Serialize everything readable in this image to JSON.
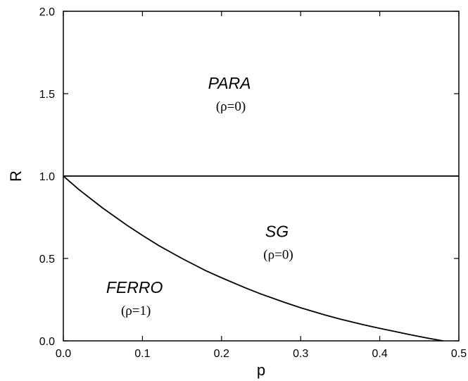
{
  "chart_data": {
    "type": "line",
    "xlabel": "p",
    "ylabel": "R",
    "xlim": [
      0.0,
      0.5
    ],
    "ylim": [
      0.0,
      2.0
    ],
    "x_ticks": [
      "0.0",
      "0.1",
      "0.2",
      "0.3",
      "0.4",
      "0.5"
    ],
    "y_ticks": [
      "0.0",
      "0.5",
      "1.0",
      "1.5",
      "2.0"
    ],
    "grid": false,
    "series": [
      {
        "x": [
          0.0,
          0.5
        ],
        "y": [
          1.0,
          1.0
        ]
      },
      {
        "x": [
          0.0,
          0.02,
          0.05,
          0.08,
          0.1,
          0.12,
          0.15,
          0.18,
          0.2,
          0.23,
          0.25,
          0.28,
          0.3,
          0.33,
          0.35,
          0.38,
          0.4,
          0.42,
          0.44,
          0.46,
          0.48
        ],
        "y": [
          1.0,
          0.917,
          0.805,
          0.703,
          0.64,
          0.58,
          0.5,
          0.426,
          0.383,
          0.322,
          0.284,
          0.233,
          0.201,
          0.158,
          0.132,
          0.097,
          0.076,
          0.056,
          0.036,
          0.017,
          0.0
        ]
      }
    ],
    "annotations": [
      {
        "name": "PARA",
        "sub": "(ρ=0)",
        "x": 0.21,
        "y": 1.53
      },
      {
        "name": "SG",
        "sub": "(ρ=0)",
        "x": 0.27,
        "y": 0.63
      },
      {
        "name": "FERRO",
        "sub": "(ρ=1)",
        "x": 0.09,
        "y": 0.29
      }
    ]
  }
}
